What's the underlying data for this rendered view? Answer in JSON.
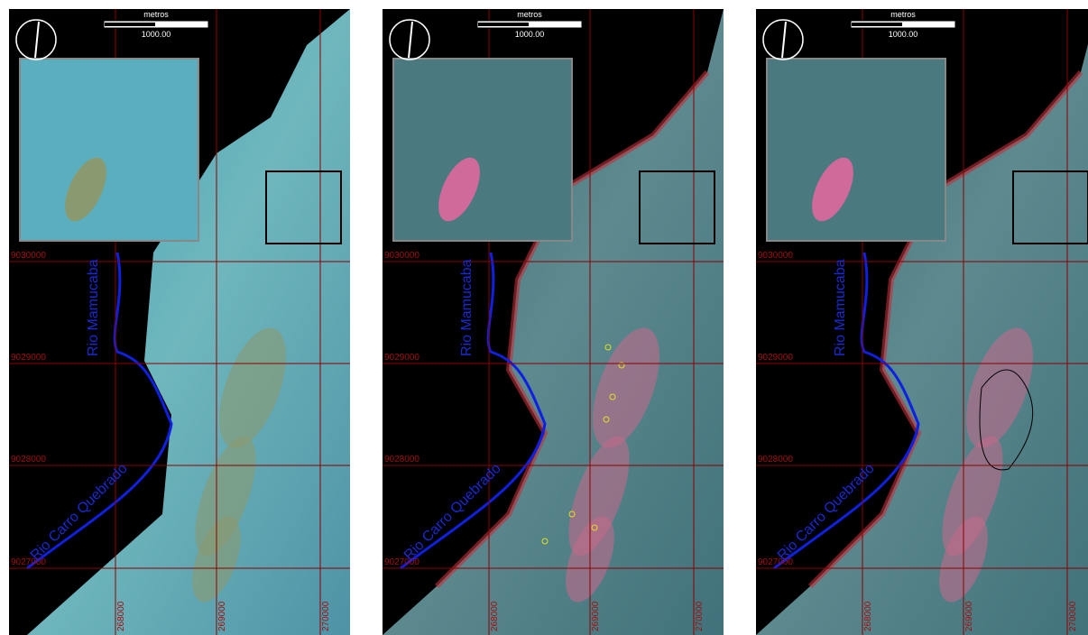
{
  "panels": [
    {
      "scale_unit": "metros",
      "scale_length": "1000.00",
      "rivers": [
        "Rio Mamucaba",
        "Rio Carro Quebrado"
      ],
      "northings": [
        "9030000",
        "9029000",
        "9028000",
        "9027000"
      ],
      "eastings": [
        "268000",
        "269000",
        "270000"
      ]
    },
    {
      "scale_unit": "metros",
      "scale_length": "1000.00",
      "rivers": [
        "Rio Mamucaba",
        "Rio Carro Quebrado"
      ],
      "northings": [
        "9030000",
        "9029000",
        "9028000",
        "9027000"
      ],
      "eastings": [
        "268000",
        "269000",
        "270000"
      ]
    },
    {
      "scale_unit": "metros",
      "scale_length": "1000.00",
      "rivers": [
        "Rio Mamucaba",
        "Rio Carro Quebrado"
      ],
      "northings": [
        "9030000",
        "9029000",
        "9028000",
        "9027000"
      ],
      "eastings": [
        "268000",
        "269000",
        "270000"
      ]
    }
  ]
}
